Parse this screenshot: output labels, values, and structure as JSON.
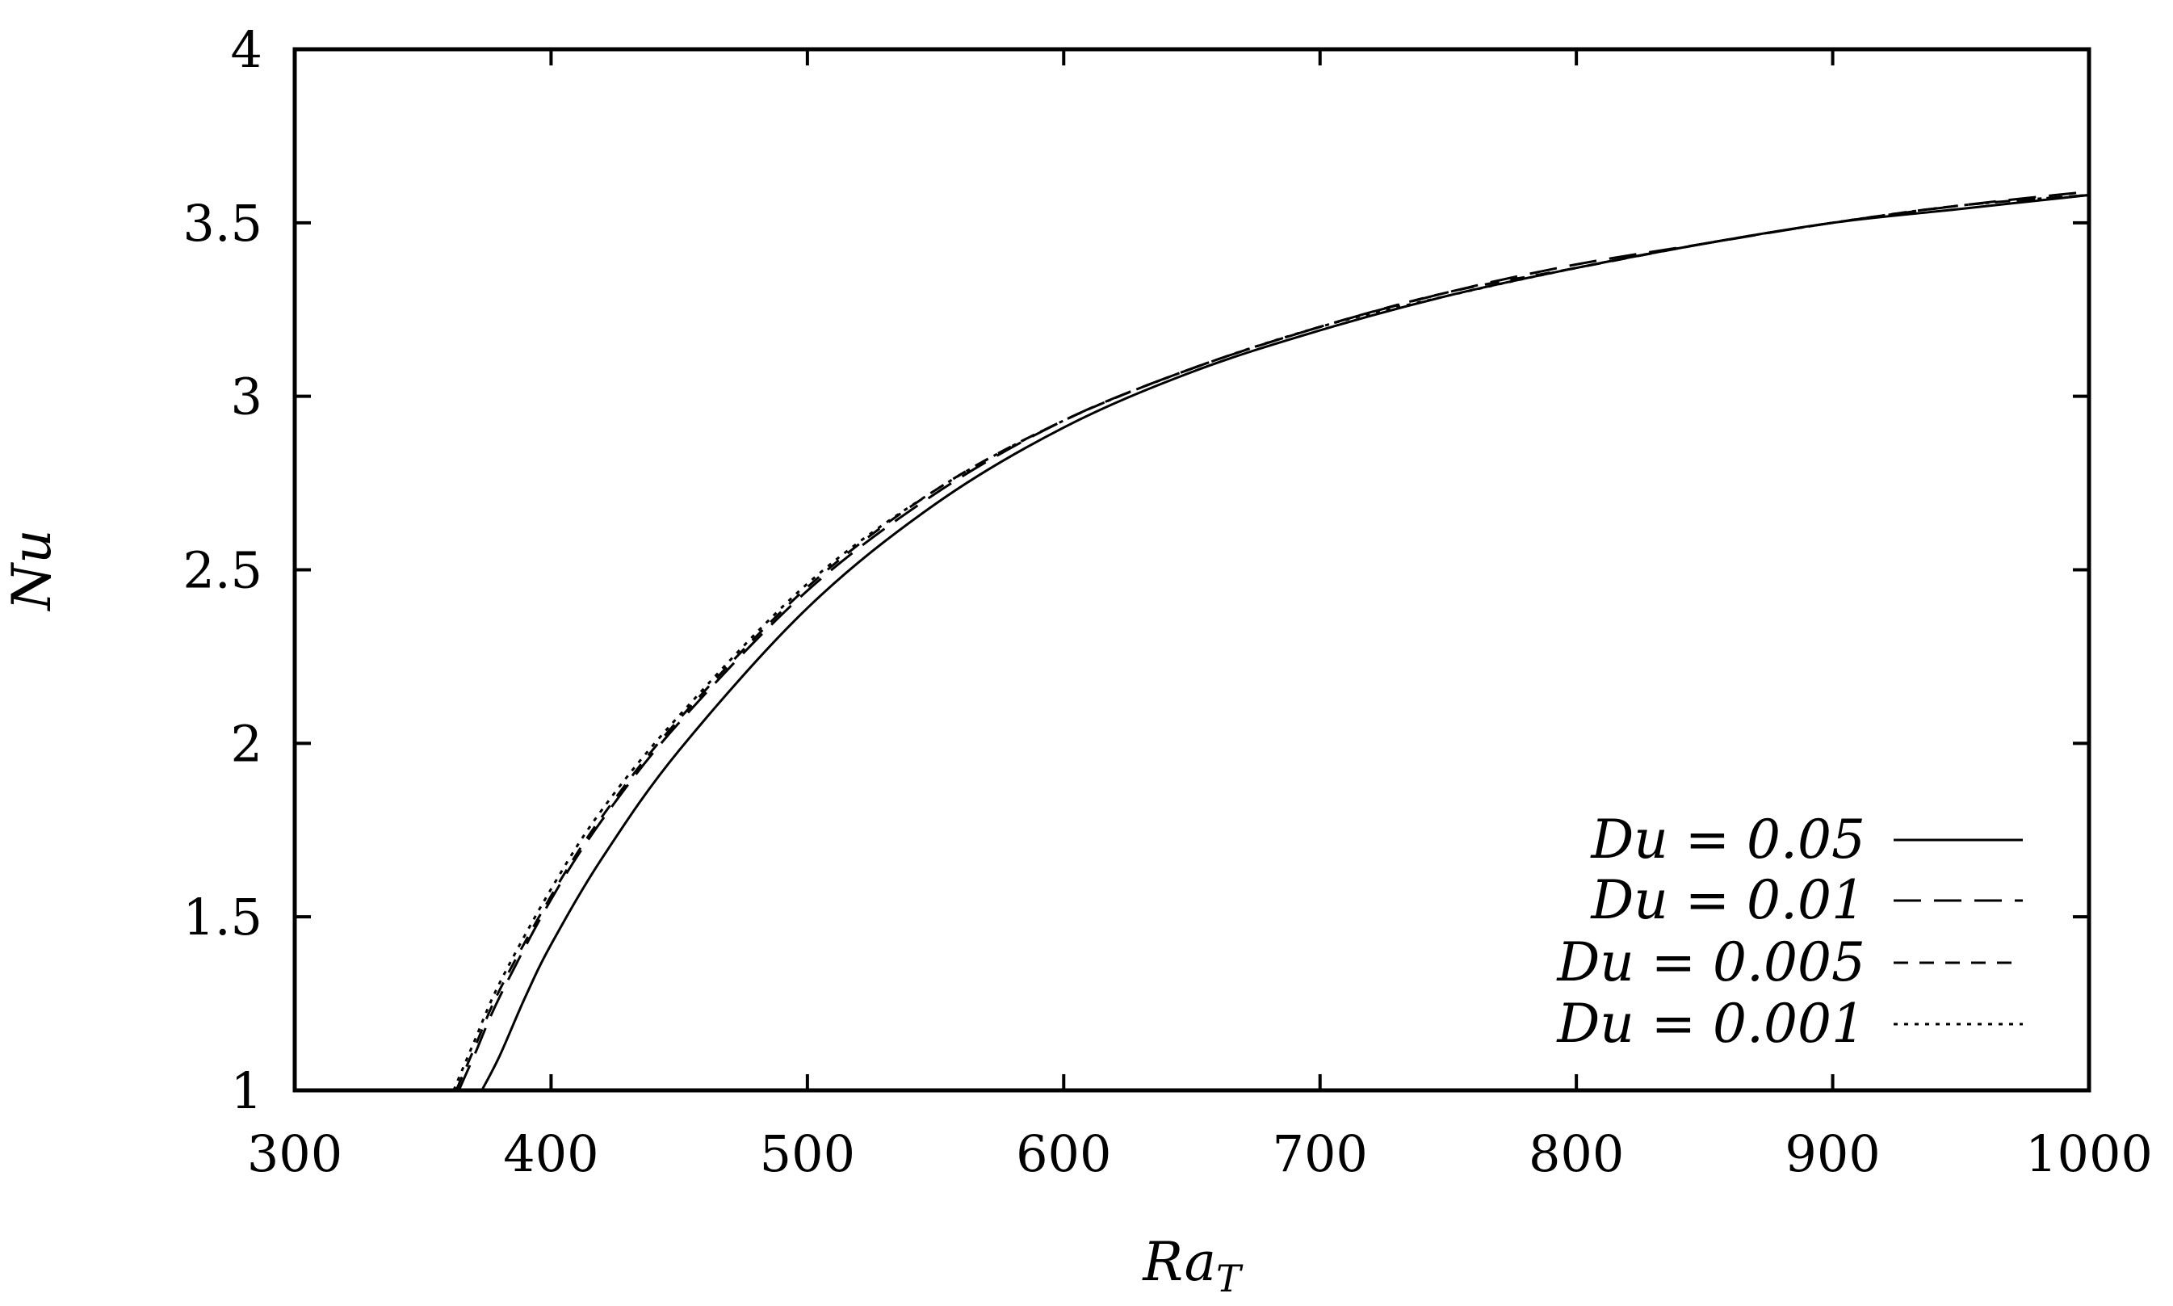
{
  "chart_data": {
    "type": "line",
    "xlabel": "Ra_T",
    "xlabel_main": "Ra",
    "xlabel_sub": "T",
    "ylabel": "Nu",
    "xlim": [
      300,
      1000
    ],
    "ylim": [
      1,
      4
    ],
    "xticks": [
      300,
      400,
      500,
      600,
      700,
      800,
      900,
      1000
    ],
    "yticks": [
      1,
      1.5,
      2,
      2.5,
      3,
      3.5,
      4
    ],
    "ytick_labels": [
      "1",
      "1.5",
      "2",
      "2.5",
      "3",
      "3.5",
      "4"
    ],
    "grid": false,
    "legend_position": "bottom-right",
    "series": [
      {
        "name": "Du = 0.05",
        "style": "solid",
        "x": [
          373,
          380,
          390,
          400,
          420,
          450,
          500,
          550,
          600,
          650,
          700,
          750,
          800,
          850,
          900,
          950,
          1000
        ],
        "values": [
          1.0,
          1.1,
          1.27,
          1.42,
          1.67,
          1.98,
          2.39,
          2.69,
          2.91,
          3.07,
          3.19,
          3.29,
          3.37,
          3.44,
          3.5,
          3.54,
          3.58
        ]
      },
      {
        "name": "Du = 0.01",
        "style": "long-dash",
        "x": [
          364,
          370,
          380,
          400,
          420,
          450,
          500,
          550,
          600,
          650,
          700,
          750,
          800,
          850,
          900,
          950,
          1000
        ],
        "values": [
          1.0,
          1.1,
          1.27,
          1.55,
          1.78,
          2.06,
          2.44,
          2.72,
          2.93,
          3.08,
          3.2,
          3.3,
          3.38,
          3.44,
          3.5,
          3.55,
          3.59
        ]
      },
      {
        "name": "Du = 0.005",
        "style": "short-dash",
        "x": [
          363,
          370,
          380,
          400,
          420,
          450,
          500,
          550,
          600,
          650,
          700,
          750,
          800,
          850,
          900,
          950,
          1000
        ],
        "values": [
          1.0,
          1.12,
          1.29,
          1.56,
          1.79,
          2.07,
          2.45,
          2.73,
          2.93,
          3.08,
          3.2,
          3.3,
          3.37,
          3.44,
          3.5,
          3.55,
          3.58
        ]
      },
      {
        "name": "Du = 0.001",
        "style": "dotted",
        "x": [
          362,
          370,
          380,
          400,
          420,
          450,
          500,
          550,
          600,
          650,
          700,
          750,
          800,
          850,
          900,
          950,
          1000
        ],
        "values": [
          1.0,
          1.14,
          1.31,
          1.58,
          1.81,
          2.08,
          2.46,
          2.73,
          2.93,
          3.08,
          3.2,
          3.29,
          3.37,
          3.44,
          3.5,
          3.55,
          3.58
        ]
      }
    ]
  }
}
